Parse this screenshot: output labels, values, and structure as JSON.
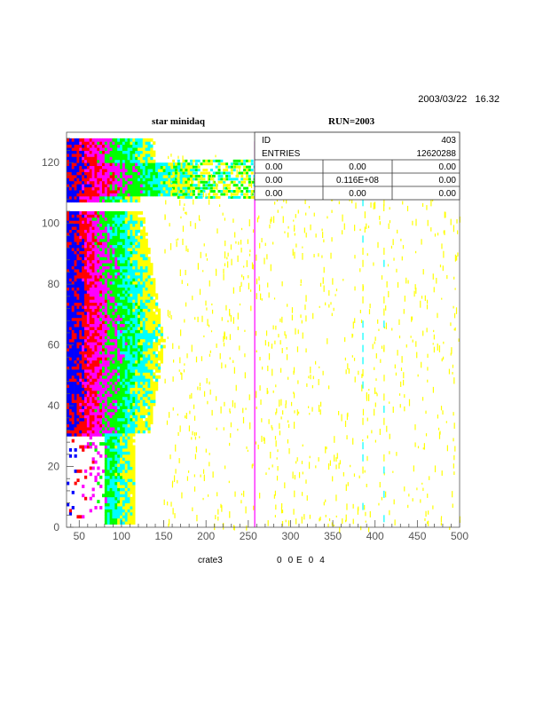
{
  "header": {
    "datetime": "2003/03/22   16.32",
    "title_left": "star minidaq",
    "title_right": "RUN=2003"
  },
  "footer": {
    "xlabel": "crate3",
    "note": "0  0 E  0  4"
  },
  "stats": {
    "id_label": "ID",
    "id_value": "403",
    "entries_label": "ENTRIES",
    "entries_value": "12620288",
    "grid": [
      [
        "0.00",
        "0.00",
        "0.00"
      ],
      [
        "0.00",
        "0.116E+08",
        "0.00"
      ],
      [
        "0.00",
        "0.00",
        "0.00"
      ]
    ]
  },
  "chart_data": {
    "type": "heatmap",
    "title": "star minidaq",
    "xlabel": "crate3",
    "ylabel": "",
    "xlim": [
      35,
      500
    ],
    "ylim": [
      0,
      130
    ],
    "x_ticks": [
      50,
      100,
      150,
      200,
      250,
      300,
      350,
      400,
      450,
      500
    ],
    "y_ticks": [
      0,
      20,
      40,
      60,
      80,
      100,
      120
    ],
    "color_levels": [
      "#ffff00",
      "#00ffff",
      "#00ff00",
      "#ff00ff",
      "#ff0000",
      "#0000ff"
    ],
    "dense_band_x": [
      35,
      140
    ],
    "bright_column_x": 257,
    "cyan_columns_x": [
      385,
      410
    ]
  }
}
